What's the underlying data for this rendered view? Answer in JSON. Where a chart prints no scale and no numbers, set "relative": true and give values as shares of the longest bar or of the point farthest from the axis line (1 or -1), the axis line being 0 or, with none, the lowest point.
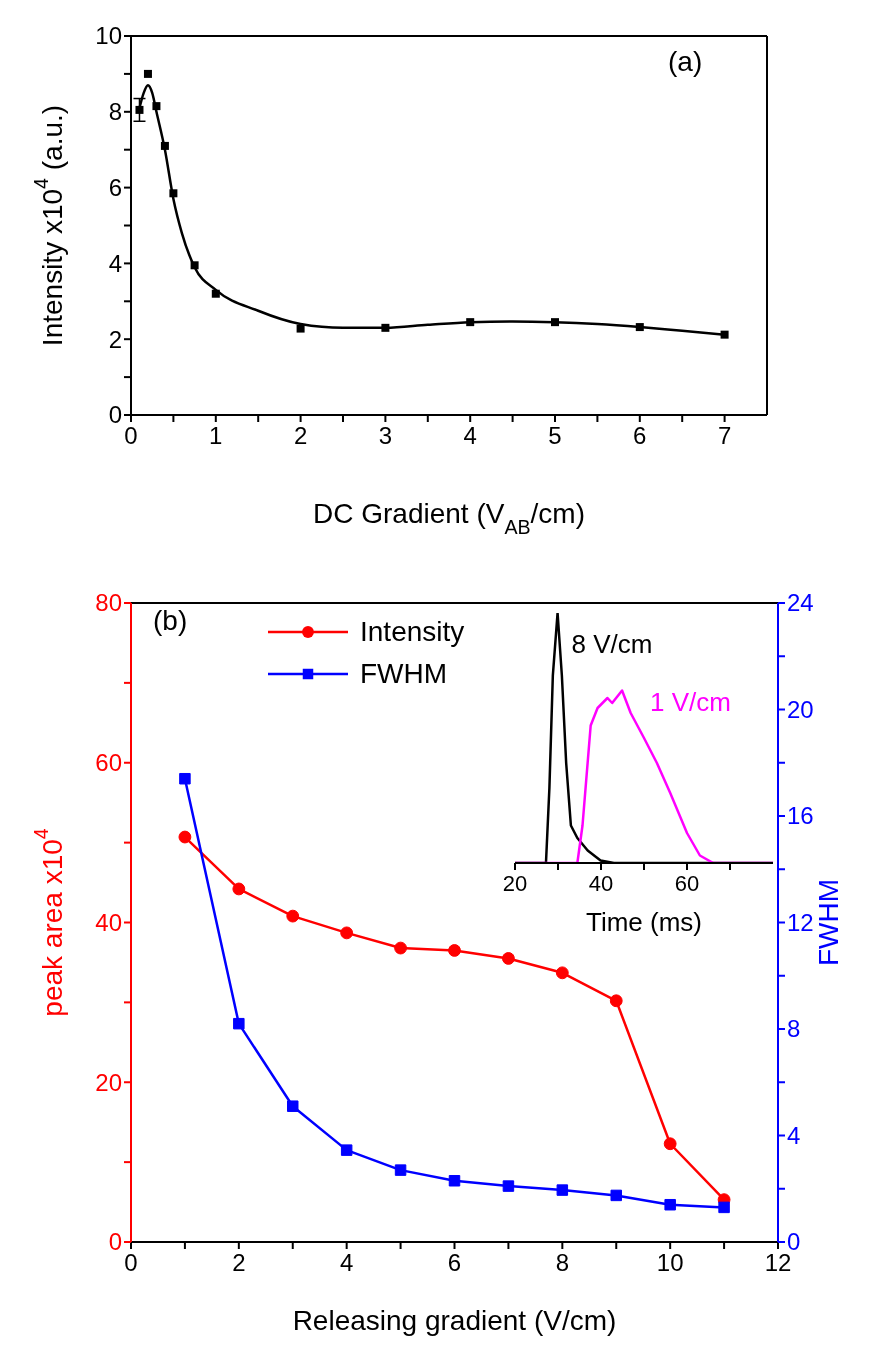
{
  "chart_data": [
    {
      "type": "scatter",
      "xlabel": "DC Gradient (V$_{AB}$/cm)",
      "ylabel": "Intensity x10$^{4}$ (a.u.)",
      "annotations": [
        "(a)"
      ],
      "xlim": [
        0,
        7.5
      ],
      "ylim": [
        0,
        10
      ],
      "xticks": [
        0,
        {
          "value": 0.5,
          "label": null
        },
        1,
        {
          "value": 1.5,
          "label": null
        },
        2,
        {
          "value": 2.5,
          "label": null
        },
        3,
        {
          "value": 3.5,
          "label": null
        },
        4,
        {
          "value": 4.5,
          "label": null
        },
        5,
        {
          "value": 5.5,
          "label": null
        },
        6,
        {
          "value": 6.5,
          "label": null
        },
        7
      ],
      "yticks": [
        0,
        {
          "value": 1,
          "label": null
        },
        2,
        {
          "value": 3,
          "label": null
        },
        4,
        {
          "value": 5,
          "label": null
        },
        6,
        {
          "value": 7,
          "label": null
        },
        8,
        {
          "value": 9,
          "label": null
        },
        10
      ],
      "series": [
        {
          "type": "scatter",
          "color": "#000000",
          "marker": "square",
          "x": [
            0.1,
            0.2,
            0.3,
            0.4,
            0.5,
            0.75,
            1,
            2,
            3,
            4,
            5,
            6,
            7
          ],
          "values": [
            8.05,
            9.0,
            8.15,
            7.1,
            5.85,
            3.95,
            3.2,
            2.28,
            2.3,
            2.45,
            2.45,
            2.32,
            2.12
          ],
          "errors": [
            0.3,
            null,
            null,
            null,
            null,
            null,
            null,
            null,
            null,
            null,
            null,
            null,
            null
          ]
        },
        {
          "type": "line",
          "color": "#000000",
          "marker": "none",
          "x": [
            0.1,
            0.15,
            0.2,
            0.25,
            0.3,
            0.4,
            0.5,
            0.6,
            0.75,
            1,
            1.5,
            2,
            2.5,
            3,
            3.5,
            4,
            4.5,
            5,
            5.5,
            6,
            6.5,
            7
          ],
          "values": [
            8.1,
            8.5,
            8.7,
            8.5,
            8.0,
            7.0,
            5.7,
            4.8,
            3.9,
            3.3,
            2.75,
            2.4,
            2.3,
            2.3,
            2.38,
            2.45,
            2.47,
            2.45,
            2.4,
            2.32,
            2.22,
            2.12
          ]
        }
      ]
    },
    {
      "type": "line",
      "xlabel": "Releasing gradient (V/cm)",
      "ylabel": "peak area x10$^{4}$",
      "y2label": "FWHM",
      "annotations": [
        "(b)"
      ],
      "legend": "top left",
      "xlim": [
        0,
        12
      ],
      "ylim": [
        0,
        80
      ],
      "y2lim": [
        0,
        24
      ],
      "xticks": [
        0,
        {
          "value": 1,
          "label": null
        },
        2,
        {
          "value": 3,
          "label": null
        },
        4,
        {
          "value": 5,
          "label": null
        },
        6,
        {
          "value": 7,
          "label": null
        },
        8,
        {
          "value": 9,
          "label": null
        },
        10,
        {
          "value": 11,
          "label": null
        },
        12
      ],
      "yticks": [
        0,
        {
          "value": 10,
          "label": null
        },
        20,
        {
          "value": 30,
          "label": null
        },
        40,
        {
          "value": 50,
          "label": null
        },
        60,
        {
          "value": 70,
          "label": null
        },
        80
      ],
      "y2ticks": [
        0,
        {
          "value": 2,
          "label": null
        },
        4,
        {
          "value": 6,
          "label": null
        },
        8,
        {
          "value": 10,
          "label": null
        },
        12,
        {
          "value": 14,
          "label": null
        },
        16,
        {
          "value": 18,
          "label": null
        },
        20,
        {
          "value": 22,
          "label": null
        },
        24
      ],
      "series": [
        {
          "name": "Intensity",
          "color": "#ff0000",
          "marker": "circle",
          "x": [
            1,
            2,
            3,
            4,
            5,
            6,
            7,
            8,
            9,
            10,
            11
          ],
          "values": [
            50.7,
            44.2,
            40.8,
            38.7,
            36.8,
            36.5,
            35.5,
            33.7,
            30.2,
            12.3,
            5.3
          ]
        },
        {
          "name": "FWHM",
          "color": "#0000ff",
          "marker": "square",
          "axis": "y2",
          "x": [
            1,
            2,
            3,
            4,
            5,
            6,
            7,
            8,
            9,
            10,
            11
          ],
          "values": [
            17.4,
            8.2,
            5.1,
            3.45,
            2.7,
            2.3,
            2.1,
            1.95,
            1.75,
            1.4,
            1.3
          ]
        }
      ]
    },
    {
      "type": "line",
      "relative": true,
      "xlabel": "Time (ms)",
      "xlim": [
        20,
        80
      ],
      "xticks": [
        20,
        {
          "value": 30,
          "label": null
        },
        40,
        {
          "value": 50,
          "label": null
        },
        60,
        {
          "value": 70,
          "label": null
        }
      ],
      "series": [
        {
          "name": "8 V/cm",
          "color": "#000000",
          "marker": "none",
          "x": [
            20,
            26.5,
            27.2,
            28,
            28.8,
            29.9,
            30.9,
            31.9,
            33,
            34.5,
            36.9,
            39.9,
            43,
            80
          ],
          "values": [
            0,
            0,
            0,
            0.3,
            0.75,
            1,
            0.75,
            0.4,
            0.15,
            0.1,
            0.05,
            0.01,
            0,
            0
          ]
        },
        {
          "name": "1 V/cm",
          "color": "#ff00ff",
          "marker": "none",
          "x": [
            20,
            34.5,
            35.7,
            37.6,
            39.2,
            41.5,
            42.6,
            44.9,
            46.9,
            50,
            53,
            56.1,
            60,
            63,
            66.1,
            80
          ],
          "values": [
            0,
            0,
            0.15,
            0.55,
            0.62,
            0.66,
            0.64,
            0.69,
            0.6,
            0.5,
            0.4,
            0.28,
            0.12,
            0.03,
            0,
            0
          ]
        }
      ]
    }
  ]
}
